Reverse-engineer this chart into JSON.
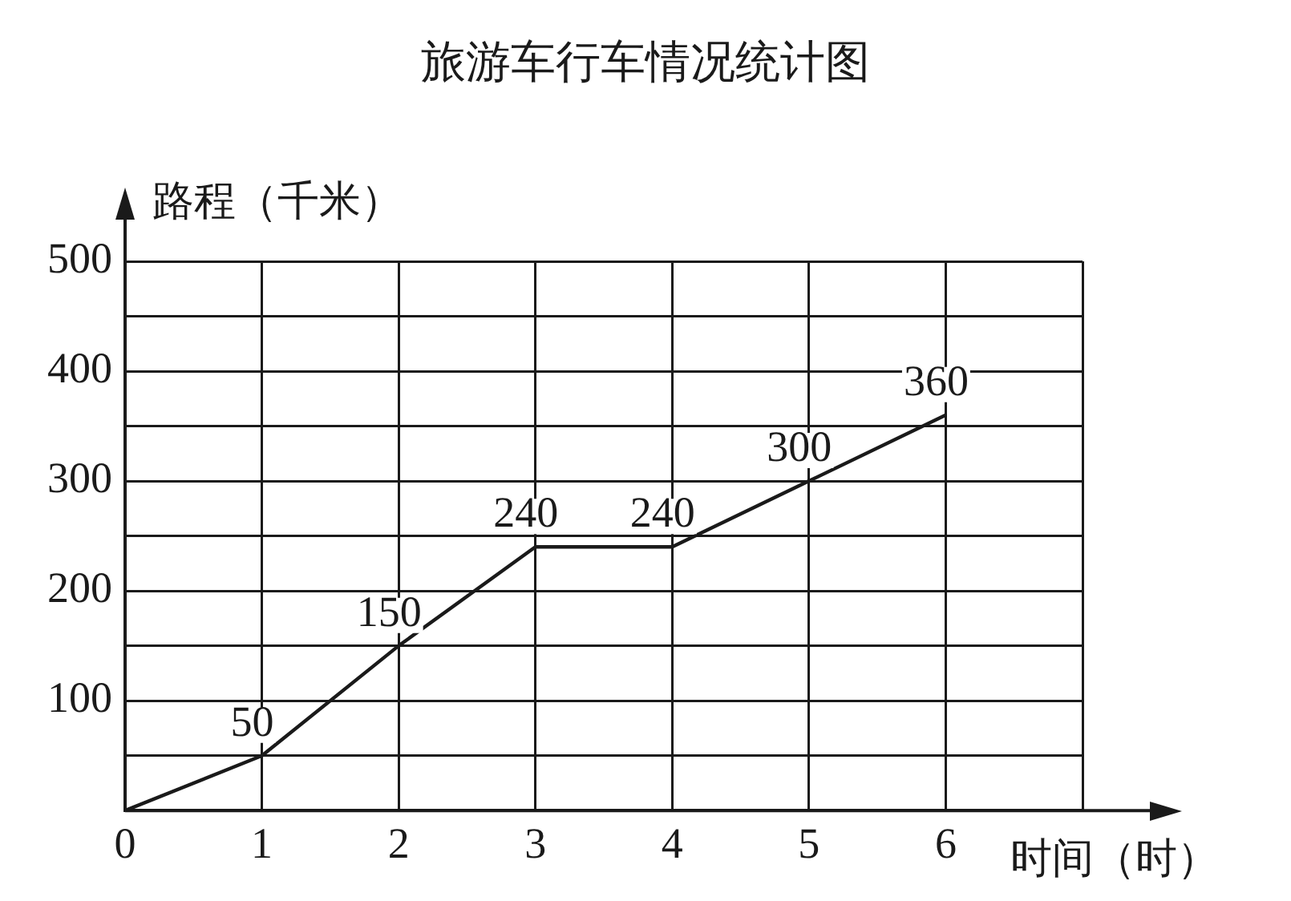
{
  "chart_data": {
    "type": "line",
    "title": "旅游车行车情况统计图",
    "xlabel": "时间（时）",
    "ylabel": "路程（千米）",
    "x": [
      0,
      1,
      2,
      3,
      4,
      5,
      6
    ],
    "series": [
      {
        "color": "#1a1a1a",
        "values": [
          0,
          50,
          150,
          240,
          240,
          300,
          360
        ],
        "value_labels": [
          null,
          "50",
          "150",
          "240",
          "240",
          "300",
          "360"
        ]
      }
    ],
    "xlim": [
      0,
      7
    ],
    "xticks": [
      0,
      1,
      2,
      3,
      4,
      5,
      6,
      {
        "value": 7,
        "label": null
      }
    ],
    "ylim": [
      0,
      500
    ],
    "yticks": [
      {
        "value": 50,
        "label": null
      },
      100,
      {
        "value": 150,
        "label": null
      },
      200,
      {
        "value": 250,
        "label": null
      },
      300,
      {
        "value": 350,
        "label": null
      },
      400,
      {
        "value": 450,
        "label": null
      },
      500
    ],
    "grid": true,
    "legend": false,
    "marker": "none",
    "line_style": "solid"
  }
}
